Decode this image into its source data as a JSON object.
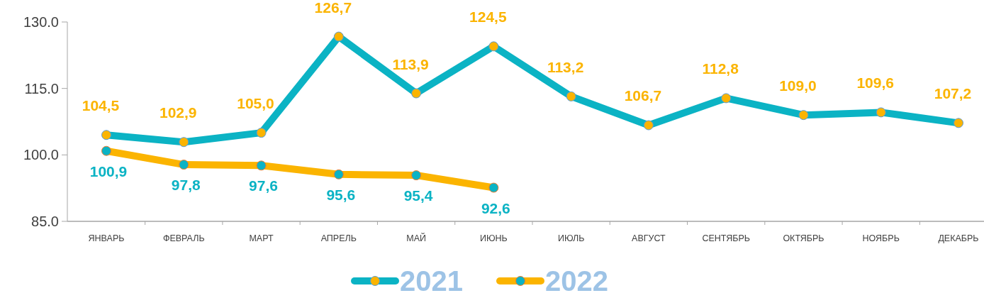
{
  "chart_data": {
    "type": "line",
    "categories": [
      "ЯНВАРЬ",
      "ФЕВРАЛЬ",
      "МАРТ",
      "АПРЕЛЬ",
      "МАЙ",
      "ИЮНЬ",
      "ИЮЛЬ",
      "АВГУСТ",
      "СЕНТЯБРЬ",
      "ОКТЯБРЬ",
      "НОЯБРЬ",
      "ДЕКАБРЬ"
    ],
    "series": [
      {
        "name": "2021",
        "color": "#0bb3c4",
        "values": [
          104.5,
          102.9,
          105.0,
          126.7,
          113.9,
          124.5,
          113.2,
          106.7,
          112.8,
          109.0,
          109.6,
          107.2
        ],
        "value_labels": [
          "104,5",
          "102,9",
          "105,0",
          "126,7",
          "113,9",
          "124,5",
          "113,2",
          "106,7",
          "112,8",
          "109,0",
          "109,6",
          "107,2"
        ]
      },
      {
        "name": "2022",
        "color": "#fbb400",
        "values": [
          100.9,
          97.8,
          97.6,
          95.6,
          95.4,
          92.6,
          null,
          null,
          null,
          null,
          null,
          null
        ],
        "value_labels": [
          "100,9",
          "97,8",
          "97,6",
          "95,6",
          "95,4",
          "92,6",
          null,
          null,
          null,
          null,
          null,
          null
        ]
      }
    ],
    "ylim": [
      85,
      130
    ],
    "yticks": [
      {
        "value": 85,
        "label": "85.0"
      },
      {
        "value": 100,
        "label": "100.0"
      },
      {
        "value": 115,
        "label": "115.0"
      },
      {
        "value": 130,
        "label": "130.0"
      }
    ],
    "marker": "circle",
    "legend": "bottom"
  }
}
